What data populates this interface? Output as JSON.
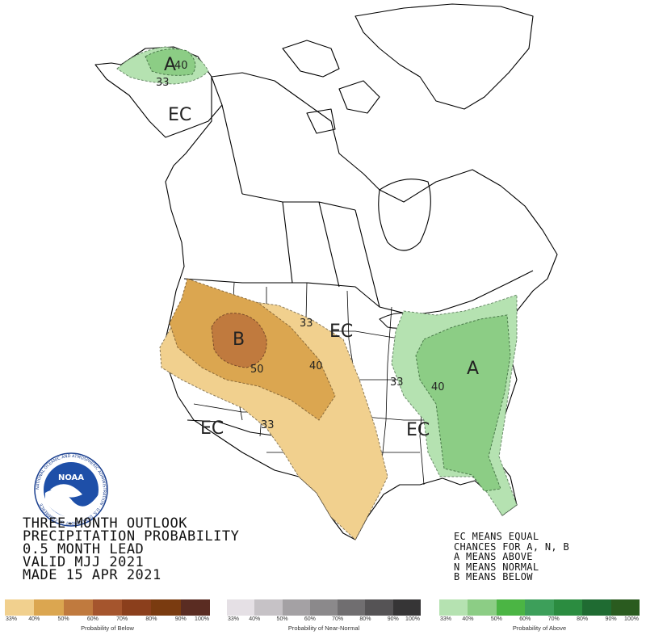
{
  "title_lines": [
    "THREE-MONTH OUTLOOK",
    "PRECIPITATION PROBABILITY",
    "0.5 MONTH LEAD",
    "VALID MJJ 2021",
    "MADE 15 APR 2021"
  ],
  "ec_key_lines": [
    "EC MEANS EQUAL",
    "CHANCES FOR A, N, B",
    "A MEANS ABOVE",
    "N MEANS NORMAL",
    "B MEANS BELOW"
  ],
  "map_labels": {
    "alaska_a": "A",
    "alaska_40": "40",
    "alaska_33": "33",
    "alaska_ec": "EC",
    "west_b": "B",
    "west_50": "50",
    "west_40": "40",
    "north_33": "33",
    "plains_ec": "EC",
    "south_33": "33",
    "southwest_ec": "EC",
    "east_a": "A",
    "east_40": "40",
    "east_33": "33",
    "southeast_ec": "EC"
  },
  "logo": {
    "text": "NOAA",
    "ring_text": "NATIONAL OCEANIC AND ATMOSPHERIC ADMINISTRATION · U.S. DEPARTMENT OF COMMERCE"
  },
  "colors": {
    "below_33": "#f1d08e",
    "below_40": "#dba650",
    "below_50": "#c07a3e",
    "above_33": "#b5e2b1",
    "above_40": "#8ccd85",
    "water": "#ffffff",
    "borders": "#000000"
  },
  "legend": {
    "below": {
      "title": "Probability of Below",
      "colors": [
        "#f1d08e",
        "#dba650",
        "#c07a3e",
        "#a5552d",
        "#8b3f1c",
        "#7a3b10",
        "#5a2c22"
      ],
      "ticks": [
        "33%",
        "40%",
        "50%",
        "60%",
        "70%",
        "80%",
        "90%",
        "100%"
      ]
    },
    "normal": {
      "title": "Probability of Near-Normal",
      "colors": [
        "#e5e0e5",
        "#c6c2c6",
        "#a4a1a4",
        "#8b898b",
        "#706e70",
        "#555355",
        "#363536"
      ],
      "ticks": [
        "33%",
        "40%",
        "50%",
        "60%",
        "70%",
        "80%",
        "90%",
        "100%"
      ]
    },
    "above": {
      "title": "Probability of Above",
      "colors": [
        "#b5e2b1",
        "#8ccd85",
        "#4bb544",
        "#3d9f5a",
        "#2b8c40",
        "#1f6b32",
        "#2a5b1f"
      ],
      "ticks": [
        "33%",
        "40%",
        "50%",
        "60%",
        "70%",
        "80%",
        "90%",
        "100%"
      ]
    }
  }
}
